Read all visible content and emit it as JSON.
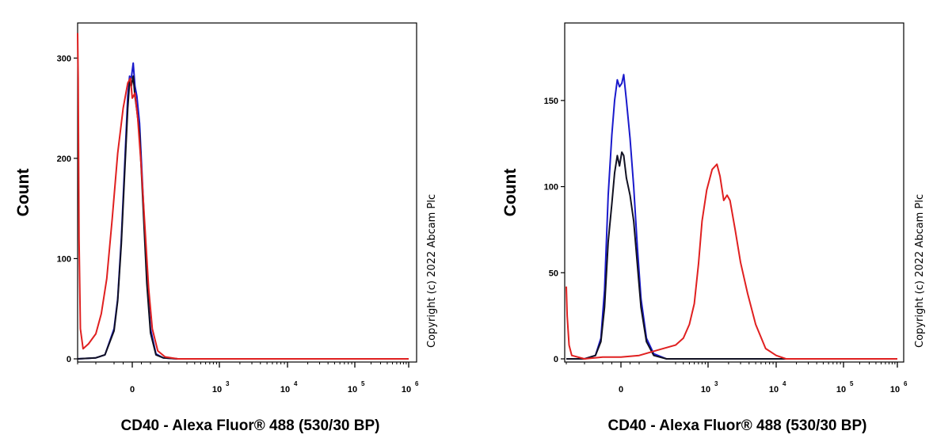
{
  "chart_data": [
    {
      "type": "line",
      "ylabel": "Count",
      "xlabel": "CD40 - Alexa Fluor® 488 (530/30 BP)",
      "copyright": "Copyright (c) 2022 Abcam Plc",
      "xscale": "biexponential",
      "ylim": [
        0,
        335
      ],
      "xlim": [
        -300,
        1000000
      ],
      "yticks": [
        0,
        100,
        200,
        300
      ],
      "xticks": [
        {
          "value": 0,
          "base": "0",
          "exp": ""
        },
        {
          "value": 1000,
          "base": "10",
          "exp": "3"
        },
        {
          "value": 10000,
          "base": "10",
          "exp": "4"
        },
        {
          "value": 100000,
          "base": "10",
          "exp": "5"
        },
        {
          "value": 1000000,
          "base": "10",
          "exp": "6"
        }
      ],
      "series": [
        {
          "color": "#1a1acc",
          "points": [
            [
              -300,
              0
            ],
            [
              -200,
              1
            ],
            [
              -150,
              4
            ],
            [
              -100,
              30
            ],
            [
              -80,
              60
            ],
            [
              -60,
              120
            ],
            [
              -40,
              200
            ],
            [
              -25,
              262
            ],
            [
              -15,
              282
            ],
            [
              -5,
              280
            ],
            [
              5,
              295
            ],
            [
              15,
              272
            ],
            [
              25,
              262
            ],
            [
              40,
              235
            ],
            [
              60,
              160
            ],
            [
              80,
              80
            ],
            [
              100,
              30
            ],
            [
              130,
              5
            ],
            [
              170,
              1
            ],
            [
              250,
              0
            ],
            [
              1000000,
              0
            ]
          ]
        },
        {
          "color": "#111122",
          "points": [
            [
              -300,
              0
            ],
            [
              -200,
              1
            ],
            [
              -150,
              4
            ],
            [
              -100,
              28
            ],
            [
              -80,
              58
            ],
            [
              -60,
              115
            ],
            [
              -40,
              192
            ],
            [
              -25,
              250
            ],
            [
              -15,
              276
            ],
            [
              -5,
              272
            ],
            [
              5,
              282
            ],
            [
              15,
              262
            ],
            [
              25,
              248
            ],
            [
              40,
              225
            ],
            [
              60,
              150
            ],
            [
              80,
              75
            ],
            [
              100,
              26
            ],
            [
              130,
              4
            ],
            [
              170,
              1
            ],
            [
              250,
              0
            ],
            [
              1000000,
              0
            ]
          ]
        },
        {
          "color": "#e02020",
          "points": [
            [
              -300,
              325
            ],
            [
              -297,
              280
            ],
            [
              -292,
              120
            ],
            [
              -285,
              30
            ],
            [
              -270,
              10
            ],
            [
              -240,
              15
            ],
            [
              -200,
              25
            ],
            [
              -170,
              45
            ],
            [
              -140,
              80
            ],
            [
              -110,
              140
            ],
            [
              -80,
              205
            ],
            [
              -50,
              250
            ],
            [
              -25,
              275
            ],
            [
              -10,
              280
            ],
            [
              0,
              260
            ],
            [
              15,
              265
            ],
            [
              30,
              240
            ],
            [
              50,
              190
            ],
            [
              70,
              130
            ],
            [
              90,
              70
            ],
            [
              110,
              30
            ],
            [
              140,
              8
            ],
            [
              180,
              2
            ],
            [
              250,
              0
            ],
            [
              1000000,
              0
            ]
          ]
        }
      ]
    },
    {
      "type": "line",
      "ylabel": "Count",
      "xlabel": "CD40 - Alexa Fluor® 488 (530/30 BP)",
      "copyright": "Copyright (c) 2022 Abcam Plc",
      "xscale": "biexponential",
      "ylim": [
        0,
        195
      ],
      "xlim": [
        -300,
        1000000
      ],
      "yticks": [
        0,
        50,
        100,
        150
      ],
      "xticks": [
        {
          "value": 0,
          "base": "0",
          "exp": ""
        },
        {
          "value": 1000,
          "base": "10",
          "exp": "3"
        },
        {
          "value": 10000,
          "base": "10",
          "exp": "4"
        },
        {
          "value": 100000,
          "base": "10",
          "exp": "5"
        },
        {
          "value": 1000000,
          "base": "10",
          "exp": "6"
        }
      ],
      "series": [
        {
          "color": "#1a1acc",
          "points": [
            [
              -300,
              0
            ],
            [
              -200,
              0
            ],
            [
              -140,
              2
            ],
            [
              -110,
              12
            ],
            [
              -90,
              40
            ],
            [
              -70,
              95
            ],
            [
              -50,
              130
            ],
            [
              -35,
              150
            ],
            [
              -20,
              162
            ],
            [
              -8,
              158
            ],
            [
              5,
              160
            ],
            [
              15,
              165
            ],
            [
              30,
              150
            ],
            [
              50,
              128
            ],
            [
              70,
              100
            ],
            [
              90,
              65
            ],
            [
              110,
              35
            ],
            [
              140,
              12
            ],
            [
              180,
              3
            ],
            [
              250,
              0
            ],
            [
              1000000,
              0
            ]
          ]
        },
        {
          "color": "#111122",
          "points": [
            [
              -300,
              0
            ],
            [
              -200,
              0
            ],
            [
              -140,
              2
            ],
            [
              -110,
              10
            ],
            [
              -90,
              30
            ],
            [
              -70,
              68
            ],
            [
              -50,
              90
            ],
            [
              -35,
              108
            ],
            [
              -20,
              118
            ],
            [
              -8,
              112
            ],
            [
              5,
              120
            ],
            [
              15,
              118
            ],
            [
              30,
              105
            ],
            [
              50,
              95
            ],
            [
              70,
              80
            ],
            [
              90,
              55
            ],
            [
              110,
              30
            ],
            [
              140,
              10
            ],
            [
              180,
              2
            ],
            [
              250,
              0
            ],
            [
              1000000,
              0
            ]
          ]
        },
        {
          "color": "#e02020",
          "points": [
            [
              -300,
              42
            ],
            [
              -295,
              25
            ],
            [
              -285,
              8
            ],
            [
              -270,
              2
            ],
            [
              -200,
              0
            ],
            [
              -100,
              1
            ],
            [
              0,
              1
            ],
            [
              100,
              2
            ],
            [
              200,
              5
            ],
            [
              300,
              8
            ],
            [
              400,
              12
            ],
            [
              500,
              20
            ],
            [
              600,
              32
            ],
            [
              700,
              55
            ],
            [
              800,
              80
            ],
            [
              950,
              98
            ],
            [
              1150,
              110
            ],
            [
              1350,
              113
            ],
            [
              1500,
              106
            ],
            [
              1700,
              92
            ],
            [
              1900,
              95
            ],
            [
              2100,
              92
            ],
            [
              2500,
              75
            ],
            [
              3000,
              56
            ],
            [
              3800,
              38
            ],
            [
              5000,
              20
            ],
            [
              7000,
              6
            ],
            [
              10000,
              2
            ],
            [
              14000,
              0
            ],
            [
              1000000,
              0
            ]
          ]
        }
      ]
    }
  ]
}
